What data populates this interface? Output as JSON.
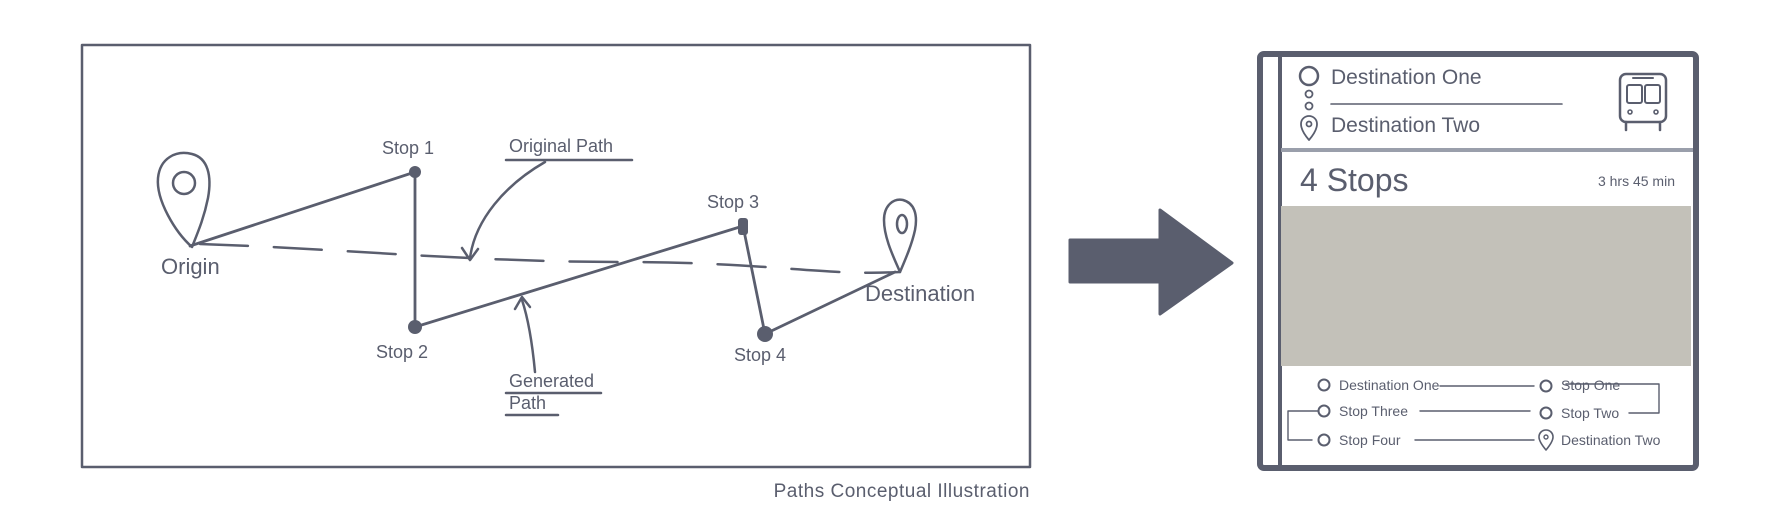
{
  "concept": {
    "caption": "Paths Conceptual Illustration",
    "labels": {
      "origin": "Origin",
      "destination": "Destination",
      "stop1": "Stop 1",
      "stop2": "Stop 2",
      "stop3": "Stop 3",
      "stop4": "Stop 4",
      "original_path": "Original Path",
      "generated_path_line1": "Generated",
      "generated_path_line2": "Path"
    }
  },
  "phone": {
    "from": "Destination One",
    "to": "Destination Two",
    "transport_icon": "bus-icon",
    "stops_title": "4 Stops",
    "duration": "3 hrs 45 min",
    "route_list": {
      "col1": [
        "Destination One",
        "Stop Three",
        "Stop Four"
      ],
      "col2": [
        "Stop One",
        "Stop Two",
        "Destination Two"
      ]
    }
  },
  "colors": {
    "ink": "#5a5e6e",
    "map_placeholder": "#c3c1b9",
    "divider": "#9a9fab"
  }
}
